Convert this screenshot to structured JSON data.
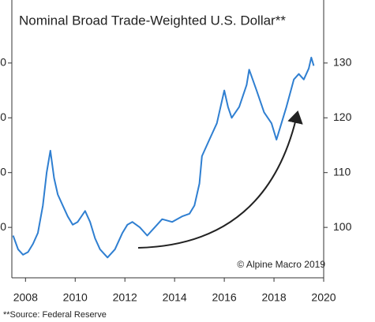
{
  "chart_data": {
    "type": "line",
    "title": "Nominal Broad Trade-Weighted U.S. Dollar**",
    "source": "**Source: Federal Reserve",
    "annotation": "© Alpine Macro 2019",
    "x": [
      2007.5,
      2007.7,
      2007.9,
      2008.1,
      2008.3,
      2008.5,
      2008.7,
      2008.85,
      2009.0,
      2009.15,
      2009.3,
      2009.5,
      2009.7,
      2009.9,
      2010.1,
      2010.4,
      2010.6,
      2010.8,
      2011.0,
      2011.3,
      2011.6,
      2011.9,
      2012.1,
      2012.3,
      2012.6,
      2012.9,
      2013.2,
      2013.5,
      2013.9,
      2014.3,
      2014.6,
      2014.8,
      2015.0,
      2015.1,
      2015.4,
      2015.7,
      2016.0,
      2016.15,
      2016.3,
      2016.6,
      2016.9,
      2017.0,
      2017.3,
      2017.6,
      2017.9,
      2018.1,
      2018.3,
      2018.5,
      2018.8,
      2019.0,
      2019.2,
      2019.4,
      2019.5,
      2019.6
    ],
    "series": [
      {
        "name": "Nominal Broad Trade-Weighted U.S. Dollar",
        "color": "#2f7fd1",
        "values": [
          98.5,
          96,
          95,
          95.5,
          97,
          99,
          104,
          110,
          114,
          109,
          106,
          104,
          102,
          100.5,
          101,
          103,
          101,
          98,
          96,
          94.5,
          96,
          99,
          100.5,
          101,
          100,
          98.5,
          100,
          101.5,
          101,
          102,
          102.5,
          104,
          108,
          113,
          116,
          119,
          125,
          122,
          120,
          122,
          126,
          128.8,
          125,
          121,
          119,
          116,
          119,
          122,
          127,
          128,
          127,
          129,
          131,
          129.5
        ]
      }
    ],
    "xlim": [
      2007.45,
      2020
    ],
    "xticks": [
      2008,
      2010,
      2012,
      2014,
      2016,
      2018,
      2020
    ],
    "ylim": [
      90.8,
      141.5
    ],
    "yticks": [
      100,
      110,
      120,
      130
    ],
    "left_yticks": [
      {
        "value": 100,
        "label": "0"
      },
      {
        "value": 110,
        "label": "0"
      },
      {
        "value": 120,
        "label": "0"
      },
      {
        "value": 130,
        "label": "0"
      }
    ]
  }
}
